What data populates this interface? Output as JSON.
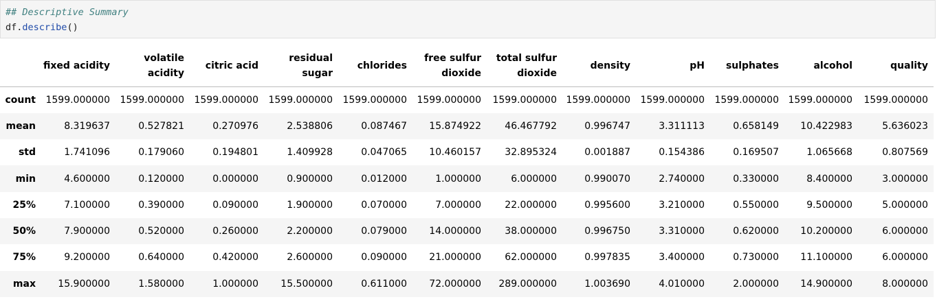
{
  "code_cell": {
    "comment": "## Descriptive Summary",
    "code_object": "df",
    "code_dot": ".",
    "code_method": "describe",
    "code_parens": "()"
  },
  "table": {
    "columns": [
      "fixed acidity",
      "volatile acidity",
      "citric acid",
      "residual sugar",
      "chlorides",
      "free sulfur dioxide",
      "total sulfur dioxide",
      "density",
      "pH",
      "sulphates",
      "alcohol",
      "quality"
    ],
    "rows": [
      {
        "label": "count",
        "values": [
          "1599.000000",
          "1599.000000",
          "1599.000000",
          "1599.000000",
          "1599.000000",
          "1599.000000",
          "1599.000000",
          "1599.000000",
          "1599.000000",
          "1599.000000",
          "1599.000000",
          "1599.000000"
        ]
      },
      {
        "label": "mean",
        "values": [
          "8.319637",
          "0.527821",
          "0.270976",
          "2.538806",
          "0.087467",
          "15.874922",
          "46.467792",
          "0.996747",
          "3.311113",
          "0.658149",
          "10.422983",
          "5.636023"
        ]
      },
      {
        "label": "std",
        "values": [
          "1.741096",
          "0.179060",
          "0.194801",
          "1.409928",
          "0.047065",
          "10.460157",
          "32.895324",
          "0.001887",
          "0.154386",
          "0.169507",
          "1.065668",
          "0.807569"
        ]
      },
      {
        "label": "min",
        "values": [
          "4.600000",
          "0.120000",
          "0.000000",
          "0.900000",
          "0.012000",
          "1.000000",
          "6.000000",
          "0.990070",
          "2.740000",
          "0.330000",
          "8.400000",
          "3.000000"
        ]
      },
      {
        "label": "25%",
        "values": [
          "7.100000",
          "0.390000",
          "0.090000",
          "1.900000",
          "0.070000",
          "7.000000",
          "22.000000",
          "0.995600",
          "3.210000",
          "0.550000",
          "9.500000",
          "5.000000"
        ]
      },
      {
        "label": "50%",
        "values": [
          "7.900000",
          "0.520000",
          "0.260000",
          "2.200000",
          "0.079000",
          "14.000000",
          "38.000000",
          "0.996750",
          "3.310000",
          "0.620000",
          "10.200000",
          "6.000000"
        ]
      },
      {
        "label": "75%",
        "values": [
          "9.200000",
          "0.640000",
          "0.420000",
          "2.600000",
          "0.090000",
          "21.000000",
          "62.000000",
          "0.997835",
          "3.400000",
          "0.730000",
          "11.100000",
          "6.000000"
        ]
      },
      {
        "label": "max",
        "values": [
          "15.900000",
          "1.580000",
          "1.000000",
          "15.500000",
          "0.611000",
          "72.000000",
          "289.000000",
          "1.003690",
          "4.010000",
          "2.000000",
          "14.900000",
          "8.000000"
        ]
      }
    ]
  }
}
